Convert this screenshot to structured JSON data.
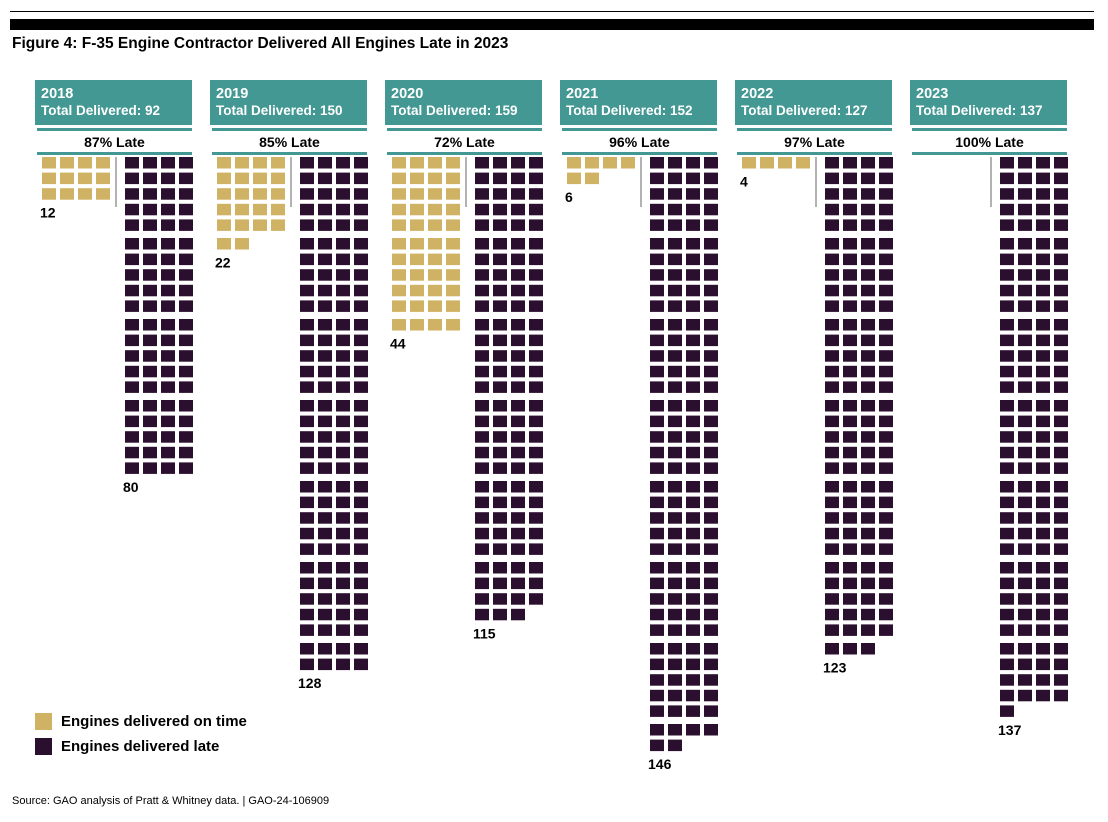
{
  "figure_title": "Figure 4: F-35 Engine Contractor Delivered All Engines Late in 2023",
  "colors": {
    "header": "#439893",
    "on_time": "#d0b264",
    "late": "#2b0f2e",
    "divider": "#999999"
  },
  "legend": {
    "on_time_label": "Engines delivered on time",
    "late_label": "Engines delivered late"
  },
  "source": "Source: GAO analysis of Pratt & Whitney data. | GAO-24-106909",
  "chart_data": {
    "type": "waffle",
    "title": "Figure 4: F-35 Engine Contractor Delivered All Engines Late in 2023",
    "unit": "engines",
    "series": [
      {
        "name": "Engines delivered on time"
      },
      {
        "name": "Engines delivered late"
      }
    ],
    "years": [
      {
        "year": "2018",
        "total_label": "Total Delivered: 92",
        "pct_label": "87% Late",
        "on_time": 12,
        "late": 80
      },
      {
        "year": "2019",
        "total_label": "Total Delivered: 150",
        "pct_label": "85% Late",
        "on_time": 22,
        "late": 128
      },
      {
        "year": "2020",
        "total_label": "Total Delivered: 159",
        "pct_label": "72% Late",
        "on_time": 44,
        "late": 115
      },
      {
        "year": "2021",
        "total_label": "Total Delivered: 152",
        "pct_label": "96% Late",
        "on_time": 6,
        "late": 146
      },
      {
        "year": "2022",
        "total_label": "Total Delivered: 127",
        "pct_label": "97% Late",
        "on_time": 4,
        "late": 123
      },
      {
        "year": "2023",
        "total_label": "Total Delivered: 137",
        "pct_label": "100% Late",
        "on_time": 0,
        "late": 137
      }
    ]
  }
}
